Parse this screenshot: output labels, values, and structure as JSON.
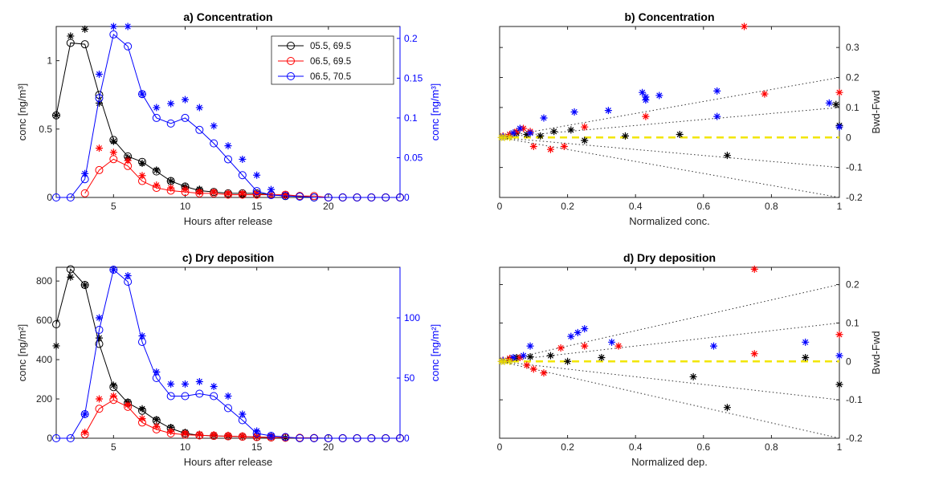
{
  "chart_data": [
    {
      "id": "a",
      "type": "line",
      "title": "a) Concentration",
      "xlabel": "Hours after release",
      "ylabel": "conc [ng/m³]",
      "ylabel_right": "conc [ng/m³]",
      "xlim": [
        1,
        25
      ],
      "ylim": [
        0,
        1.25
      ],
      "ylim_right": [
        0,
        0.215
      ],
      "xticks": [
        5,
        10,
        15,
        20
      ],
      "yticks": [
        0,
        0.5,
        1
      ],
      "yticks_right": [
        0,
        0.05,
        0.1,
        0.15,
        0.2
      ],
      "legend": "top-right",
      "series": [
        {
          "name": "05.5, 69.5",
          "color": "#000000",
          "axis": "left",
          "x": [
            1,
            2,
            3,
            4,
            5,
            6,
            7,
            8,
            9,
            10,
            11,
            12,
            13,
            14,
            15,
            16,
            17,
            18,
            19,
            20,
            21,
            22,
            23,
            24,
            25
          ],
          "y": [
            0.6,
            1.13,
            1.12,
            0.75,
            0.42,
            0.3,
            0.26,
            0.19,
            0.12,
            0.08,
            0.05,
            0.04,
            0.03,
            0.03,
            0.03,
            0.02,
            0.01,
            0.01,
            0,
            0,
            0,
            0,
            0,
            0,
            0
          ],
          "stars_x": [
            1,
            2,
            3,
            4,
            5,
            6,
            7,
            8,
            9,
            10,
            11,
            12,
            13,
            14,
            15,
            16,
            17
          ],
          "stars_y": [
            0.6,
            1.18,
            1.23,
            0.69,
            0.41,
            0.29,
            0.25,
            0.2,
            0.12,
            0.08,
            0.06,
            0.04,
            0.03,
            0.02,
            0.03,
            0.02,
            0.01
          ]
        },
        {
          "name": "06.5, 69.5",
          "color": "#ff0000",
          "axis": "left",
          "x": [
            3,
            4,
            5,
            6,
            7,
            8,
            9,
            10,
            11,
            12,
            13,
            14,
            15,
            16,
            17,
            18,
            19,
            20,
            21,
            22,
            23,
            24,
            25
          ],
          "y": [
            0.03,
            0.2,
            0.28,
            0.23,
            0.12,
            0.07,
            0.05,
            0.04,
            0.03,
            0.03,
            0.02,
            0.02,
            0.02,
            0.02,
            0.02,
            0.01,
            0.01,
            0,
            0,
            0,
            0,
            0,
            0
          ],
          "stars_x": [
            4,
            5,
            6,
            7,
            8,
            9,
            10,
            11,
            12,
            13,
            14,
            15,
            16,
            17
          ],
          "stars_y": [
            0.36,
            0.33,
            0.27,
            0.16,
            0.09,
            0.07,
            0.06,
            0.04,
            0.04,
            0.03,
            0.03,
            0.03,
            0.02,
            0.02
          ]
        },
        {
          "name": "06.5, 70.5",
          "color": "#0000ff",
          "axis": "right",
          "x": [
            1,
            2,
            3,
            4,
            5,
            6,
            7,
            8,
            9,
            10,
            11,
            12,
            13,
            14,
            15,
            16,
            17,
            18,
            19,
            20,
            21,
            22,
            23,
            24,
            25
          ],
          "y": [
            0,
            0,
            0.023,
            0.125,
            0.205,
            0.19,
            0.13,
            0.1,
            0.093,
            0.1,
            0.085,
            0.068,
            0.048,
            0.028,
            0.008,
            0.003,
            0.002,
            0.001,
            0,
            0,
            0,
            0,
            0,
            0,
            0
          ],
          "stars_x": [
            3,
            4,
            5,
            6,
            7,
            8,
            9,
            10,
            11,
            12,
            13,
            14,
            15,
            16
          ],
          "stars_y": [
            0.03,
            0.155,
            0.215,
            0.215,
            0.13,
            0.113,
            0.118,
            0.123,
            0.113,
            0.09,
            0.065,
            0.048,
            0.028,
            0.01
          ]
        }
      ]
    },
    {
      "id": "b",
      "type": "scatter",
      "title": "b) Concentration",
      "xlabel": "Normalized conc.",
      "ylabel_right": "Bwd-Fwd",
      "xlim": [
        0,
        1
      ],
      "ylim": [
        -0.2,
        0.37
      ],
      "xticks": [
        0,
        0.2,
        0.4,
        0.6,
        0.8,
        1
      ],
      "yticks": [
        -0.2,
        -0.1,
        0,
        0.1,
        0.2,
        0.3
      ],
      "ref_slopes": [
        0.2,
        0.1,
        -0.1,
        -0.2
      ],
      "series": [
        {
          "name": "05.5, 69.5",
          "color": "#000000",
          "x": [
            0.01,
            0.03,
            0.05,
            0.08,
            0.12,
            0.16,
            0.21,
            0.25,
            0.37,
            0.53,
            0.67,
            0.99,
            1.0
          ],
          "y": [
            0.002,
            0.01,
            0.015,
            0.01,
            0.005,
            0.02,
            0.025,
            -0.01,
            0.005,
            0.01,
            -0.06,
            0.11,
            0.04
          ]
        },
        {
          "name": "06.5, 69.5",
          "color": "#ff0000",
          "x": [
            0.01,
            0.03,
            0.05,
            0.07,
            0.09,
            0.1,
            0.15,
            0.19,
            0.25,
            0.43,
            0.72,
            0.78,
            1.0
          ],
          "y": [
            0.005,
            0.01,
            0.02,
            0.03,
            0.02,
            -0.03,
            -0.04,
            -0.03,
            0.035,
            0.07,
            0.37,
            0.145,
            0.15
          ]
        },
        {
          "name": "06.5, 70.5",
          "color": "#0000ff",
          "x": [
            0.01,
            0.04,
            0.06,
            0.09,
            0.13,
            0.22,
            0.32,
            0.42,
            0.43,
            0.43,
            0.47,
            0.64,
            0.64,
            0.97,
            1.0
          ],
          "y": [
            0.002,
            0.015,
            0.03,
            0.015,
            0.065,
            0.085,
            0.09,
            0.15,
            0.135,
            0.125,
            0.14,
            0.155,
            0.07,
            0.115,
            0.035
          ]
        }
      ]
    },
    {
      "id": "c",
      "type": "line",
      "title": "c) Dry deposition",
      "xlabel": "Hours after release",
      "ylabel": "conc [ng/m²]",
      "ylabel_right": "conc [ng/m²]",
      "xlim": [
        1,
        25
      ],
      "ylim": [
        0,
        870
      ],
      "ylim_right": [
        0,
        142
      ],
      "xticks": [
        5,
        10,
        15,
        20
      ],
      "yticks": [
        0,
        200,
        400,
        600,
        800
      ],
      "yticks_right": [
        0,
        50,
        100
      ],
      "series": [
        {
          "name": "05.5, 69.5",
          "color": "#000000",
          "axis": "left",
          "x": [
            1,
            2,
            3,
            4,
            5,
            6,
            7,
            8,
            9,
            10,
            11,
            12,
            13,
            14,
            15,
            16,
            17,
            18,
            19,
            20,
            21,
            22,
            23,
            24,
            25
          ],
          "y": [
            580,
            860,
            780,
            480,
            260,
            180,
            140,
            90,
            50,
            25,
            15,
            12,
            10,
            8,
            6,
            4,
            3,
            2,
            1,
            0,
            0,
            0,
            0,
            0,
            0
          ],
          "stars_x": [
            1,
            2,
            3,
            4,
            5,
            6,
            7,
            8,
            9,
            10,
            11,
            12,
            13,
            14,
            15,
            16,
            17
          ],
          "stars_y": [
            470,
            820,
            780,
            510,
            270,
            185,
            150,
            95,
            55,
            30,
            20,
            15,
            12,
            10,
            8,
            5,
            3
          ]
        },
        {
          "name": "06.5, 69.5",
          "color": "#ff0000",
          "axis": "left",
          "x": [
            3,
            4,
            5,
            6,
            7,
            8,
            9,
            10,
            11,
            12,
            13,
            14,
            15,
            16,
            17,
            18,
            19,
            20,
            21,
            22,
            23,
            24,
            25
          ],
          "y": [
            20,
            150,
            195,
            160,
            80,
            45,
            25,
            18,
            15,
            12,
            10,
            8,
            6,
            4,
            3,
            2,
            1,
            0,
            0,
            0,
            0,
            0,
            0
          ],
          "stars_x": [
            3,
            4,
            5,
            6,
            7,
            8,
            9,
            10,
            11,
            12,
            13,
            14,
            15,
            16
          ],
          "stars_y": [
            30,
            200,
            215,
            170,
            100,
            60,
            35,
            25,
            20,
            18,
            15,
            12,
            10,
            6
          ]
        },
        {
          "name": "06.5, 70.5",
          "color": "#0000ff",
          "axis": "right",
          "x": [
            1,
            2,
            3,
            4,
            5,
            6,
            7,
            8,
            9,
            10,
            11,
            12,
            13,
            14,
            15,
            16,
            17,
            18,
            19,
            20,
            21,
            22,
            23,
            24,
            25
          ],
          "y": [
            0,
            0,
            20,
            90,
            140,
            130,
            80,
            50,
            35,
            35,
            37,
            35,
            25,
            15,
            4,
            2,
            1,
            0,
            0,
            0,
            0,
            0,
            0,
            0,
            0
          ],
          "stars_x": [
            3,
            4,
            5,
            6,
            7,
            8,
            9,
            10,
            11,
            12,
            13,
            14,
            15,
            16
          ],
          "stars_y": [
            20,
            100,
            140,
            135,
            85,
            55,
            45,
            45,
            47,
            43,
            35,
            20,
            6,
            2
          ]
        }
      ]
    },
    {
      "id": "d",
      "type": "scatter",
      "title": "d) Dry deposition",
      "xlabel": "Normalized dep.",
      "ylabel_right": "Bwd-Fwd",
      "xlim": [
        0,
        1
      ],
      "ylim": [
        -0.2,
        0.245
      ],
      "xticks": [
        0,
        0.2,
        0.4,
        0.6,
        0.8,
        1
      ],
      "yticks": [
        -0.2,
        -0.1,
        0,
        0.1,
        0.2
      ],
      "ref_slopes": [
        0.2,
        0.1,
        -0.1,
        -0.2
      ],
      "series": [
        {
          "name": "05.5, 69.5",
          "color": "#000000",
          "x": [
            0.01,
            0.03,
            0.05,
            0.09,
            0.15,
            0.2,
            0.3,
            0.57,
            0.67,
            0.9,
            1.0
          ],
          "y": [
            0.002,
            0.005,
            0.01,
            0.012,
            0.015,
            0.0,
            0.01,
            -0.04,
            -0.12,
            0.01,
            -0.06
          ]
        },
        {
          "name": "06.5, 69.5",
          "color": "#ff0000",
          "x": [
            0.01,
            0.03,
            0.06,
            0.08,
            0.1,
            0.13,
            0.18,
            0.25,
            0.35,
            0.75,
            0.75,
            1.0
          ],
          "y": [
            0.003,
            0.008,
            0.01,
            -0.01,
            -0.02,
            -0.03,
            0.035,
            0.04,
            0.04,
            0.24,
            0.02,
            0.07
          ]
        },
        {
          "name": "06.5, 70.5",
          "color": "#0000ff",
          "x": [
            0.01,
            0.04,
            0.07,
            0.09,
            0.21,
            0.23,
            0.25,
            0.33,
            0.63,
            0.9,
            1.0
          ],
          "y": [
            0.002,
            0.01,
            0.015,
            0.04,
            0.065,
            0.075,
            0.085,
            0.05,
            0.04,
            0.05,
            0.015
          ]
        }
      ]
    }
  ]
}
